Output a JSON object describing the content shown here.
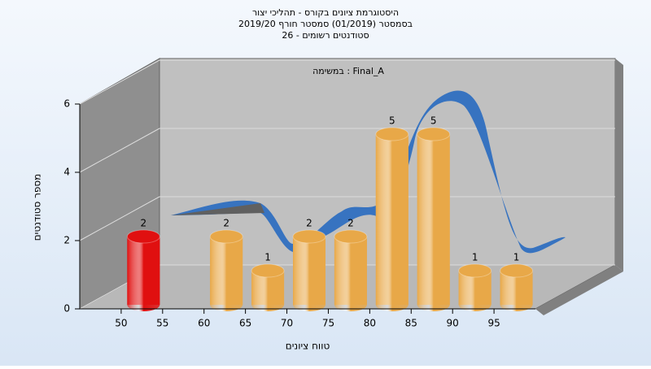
{
  "chart_data": {
    "type": "bar",
    "title": [
      "היסטוגרמת ציונים בקורס - תהליכי יצור",
      "בסמסטר  (01/2019)  סמסטר חורף 2019/20",
      "סטודנטים רשומים - 26"
    ],
    "subtitle": "במשימה : Final_A",
    "x_label": "טווח ציונים",
    "y_label": "מספר סטודנטים",
    "x": [
      50,
      55,
      60,
      65,
      70,
      75,
      80,
      85,
      90,
      95
    ],
    "values": [
      2,
      null,
      2,
      1,
      2,
      2,
      5,
      5,
      1,
      1
    ],
    "colors": [
      "#e01010",
      "#e8a848",
      "#e8a848",
      "#e8a848",
      "#e8a848",
      "#e8a848",
      "#e8a848",
      "#e8a848",
      "#e8a848",
      "#e8a848"
    ],
    "xlim": [
      45,
      100
    ],
    "xticks": [
      50,
      55,
      60,
      65,
      70,
      75,
      80,
      85,
      90,
      95
    ],
    "ylim": [
      0,
      6
    ],
    "yticks": [
      0,
      2,
      4,
      6
    ],
    "grid": true
  }
}
